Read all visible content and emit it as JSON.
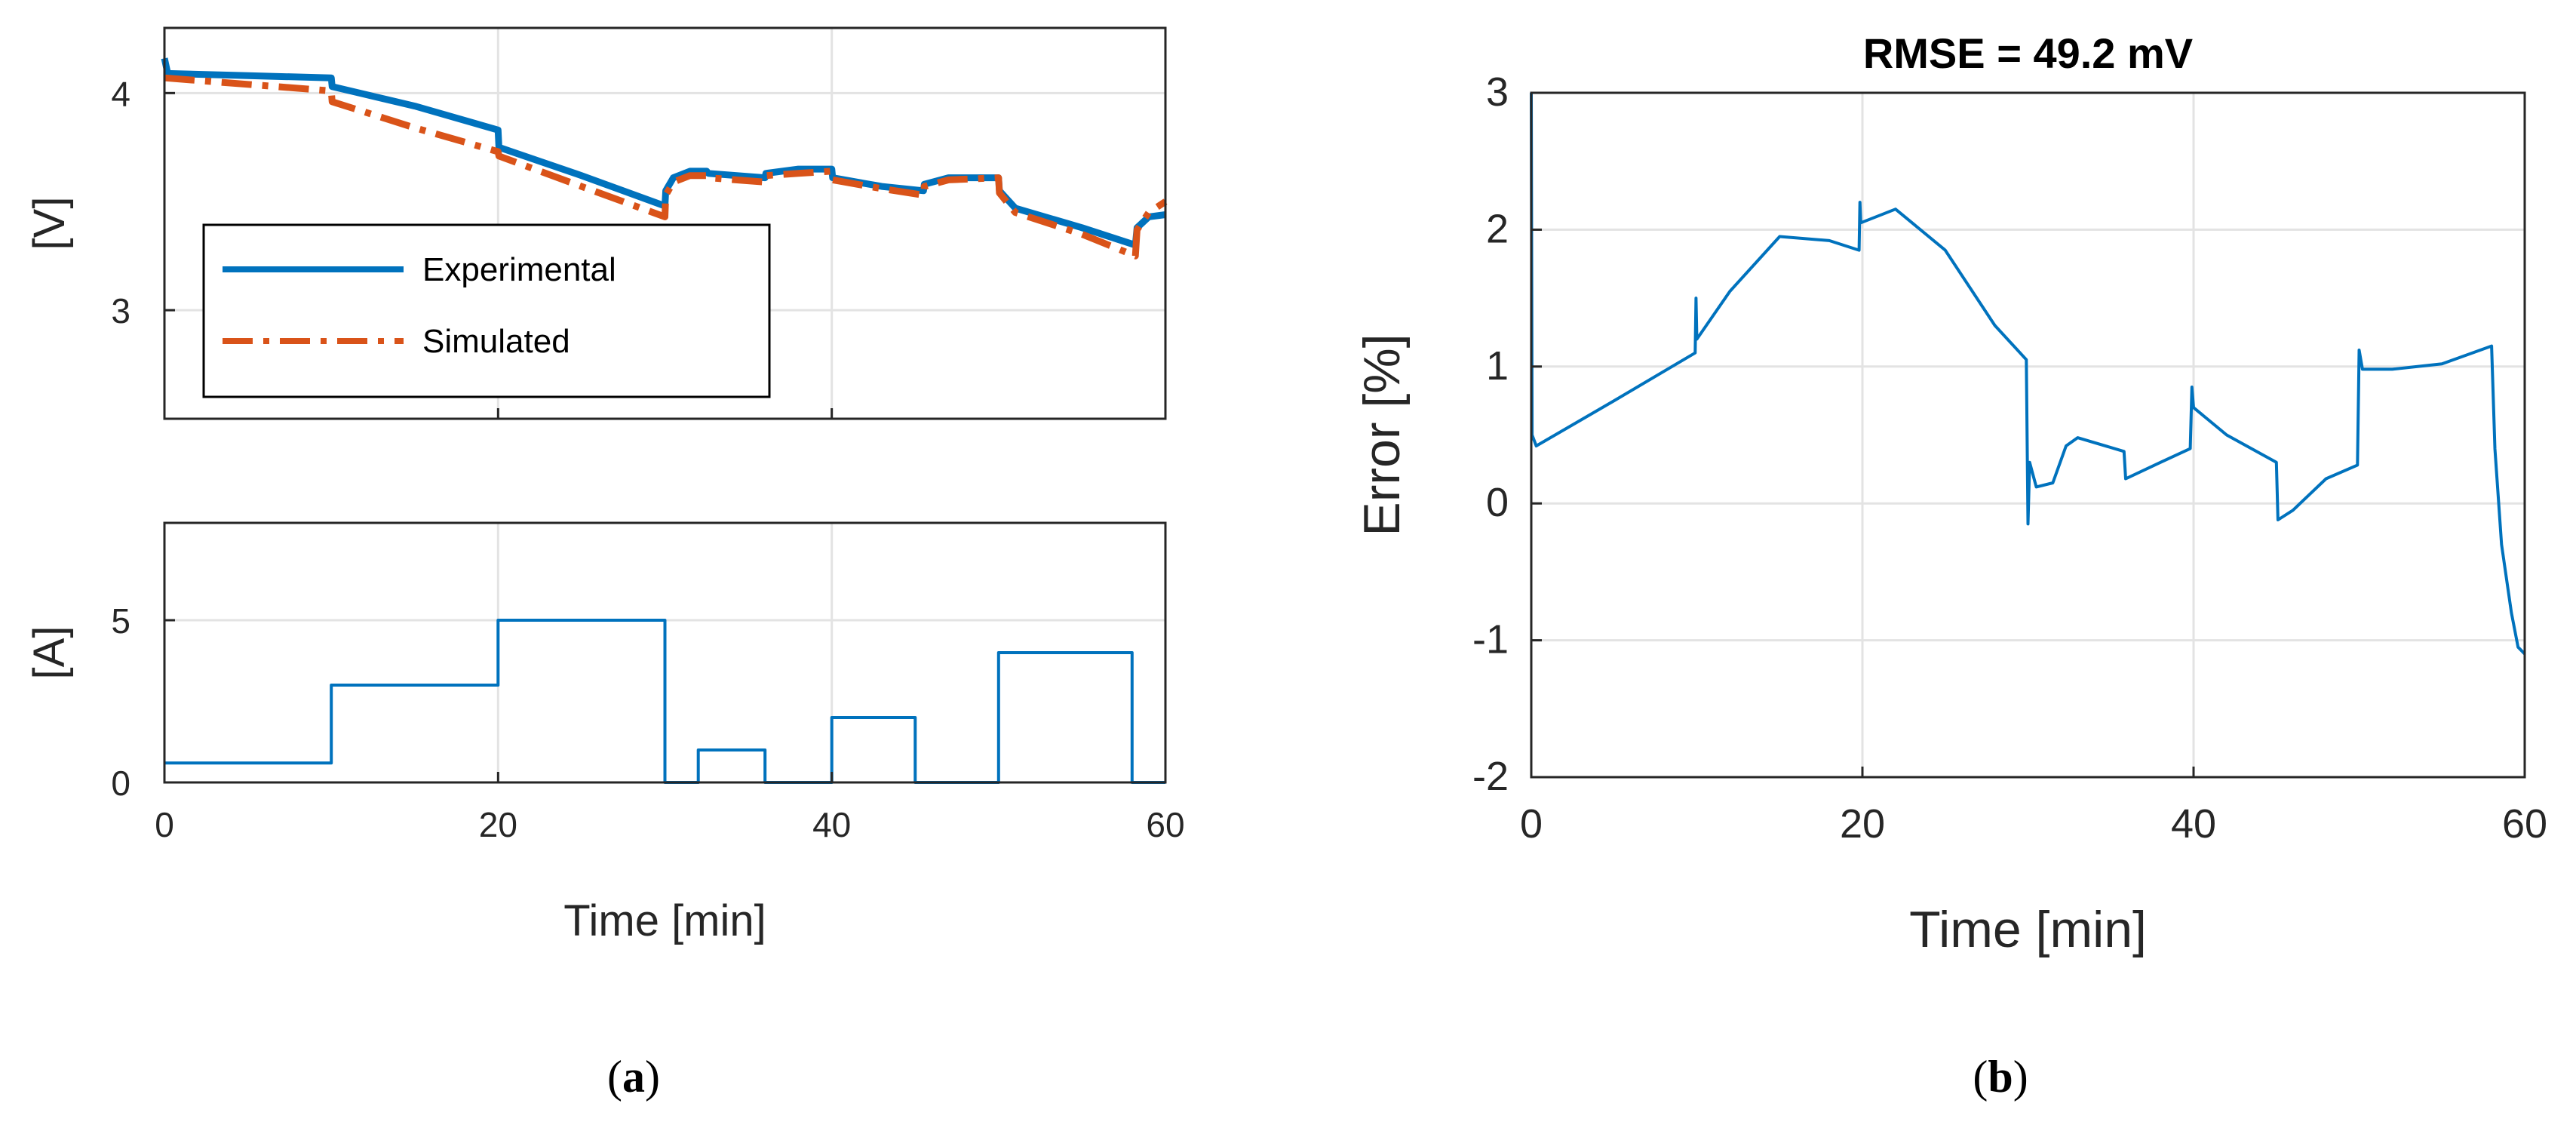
{
  "colors": {
    "experimental": "#0072BD",
    "simulated": "#D95319",
    "axis": "#262626",
    "grid": "#e3e3e3"
  },
  "panel_a": {
    "caption_open": "(",
    "caption_letter": "a",
    "caption_close": ")"
  },
  "panel_b": {
    "caption_open": "(",
    "caption_letter": "b",
    "caption_close": ")"
  },
  "chart_data": [
    {
      "id": "voltage",
      "type": "line",
      "title": "",
      "xlabel": "",
      "ylabel": "[V]",
      "xlim": [
        0,
        60
      ],
      "ylim": [
        2.5,
        4.3
      ],
      "xticks": [
        0,
        20,
        40,
        60
      ],
      "yticks": [
        3,
        4
      ],
      "ytick_labels": [
        "3",
        "4"
      ],
      "grid": true,
      "legend": {
        "location": "lower-left",
        "entries": [
          "Experimental",
          "Simulated"
        ]
      },
      "series": [
        {
          "name": "Experimental",
          "style": "solid",
          "points": [
            [
              0,
              4.16
            ],
            [
              0.2,
              4.09
            ],
            [
              5,
              4.08
            ],
            [
              10,
              4.07
            ],
            [
              10.05,
              4.03
            ],
            [
              15,
              3.94
            ],
            [
              20,
              3.83
            ],
            [
              20.05,
              3.75
            ],
            [
              25,
              3.62
            ],
            [
              30,
              3.48
            ],
            [
              30.05,
              3.55
            ],
            [
              30.5,
              3.61
            ],
            [
              31.5,
              3.64
            ],
            [
              32.5,
              3.64
            ],
            [
              32.6,
              3.63
            ],
            [
              36,
              3.61
            ],
            [
              36.05,
              3.63
            ],
            [
              38,
              3.65
            ],
            [
              40,
              3.65
            ],
            [
              40.05,
              3.61
            ],
            [
              43,
              3.57
            ],
            [
              45.5,
              3.55
            ],
            [
              45.55,
              3.58
            ],
            [
              47,
              3.61
            ],
            [
              50,
              3.61
            ],
            [
              50.05,
              3.55
            ],
            [
              51,
              3.47
            ],
            [
              55,
              3.38
            ],
            [
              58.2,
              3.3
            ],
            [
              58.3,
              3.38
            ],
            [
              59,
              3.43
            ],
            [
              60,
              3.44
            ]
          ]
        },
        {
          "name": "Simulated",
          "style": "dashdot",
          "points": [
            [
              0,
              4.07
            ],
            [
              5,
              4.04
            ],
            [
              10,
              4.01
            ],
            [
              10.05,
              3.96
            ],
            [
              15,
              3.84
            ],
            [
              20,
              3.73
            ],
            [
              20.05,
              3.71
            ],
            [
              25,
              3.57
            ],
            [
              30,
              3.43
            ],
            [
              30.05,
              3.53
            ],
            [
              30.5,
              3.59
            ],
            [
              31.5,
              3.62
            ],
            [
              32.5,
              3.62
            ],
            [
              32.6,
              3.61
            ],
            [
              36,
              3.59
            ],
            [
              36.05,
              3.62
            ],
            [
              38,
              3.63
            ],
            [
              40,
              3.64
            ],
            [
              40.05,
              3.6
            ],
            [
              43,
              3.56
            ],
            [
              45.5,
              3.53
            ],
            [
              45.55,
              3.57
            ],
            [
              47,
              3.6
            ],
            [
              50,
              3.61
            ],
            [
              50.05,
              3.54
            ],
            [
              51,
              3.45
            ],
            [
              55,
              3.35
            ],
            [
              58.2,
              3.25
            ],
            [
              58.3,
              3.37
            ],
            [
              59,
              3.45
            ],
            [
              60,
              3.5
            ]
          ]
        }
      ]
    },
    {
      "id": "current",
      "type": "line",
      "title": "",
      "xlabel": "Time [min]",
      "ylabel": "[A]",
      "xlim": [
        0,
        60
      ],
      "ylim": [
        0,
        8
      ],
      "xticks": [
        0,
        20,
        40,
        60
      ],
      "xtick_labels": [
        "0",
        "20",
        "40",
        "60"
      ],
      "yticks": [
        0,
        5
      ],
      "ytick_labels": [
        "0",
        "5"
      ],
      "grid": true,
      "series": [
        {
          "name": "",
          "style": "solid",
          "points": [
            [
              0,
              0.6
            ],
            [
              10,
              0.6
            ],
            [
              10,
              3
            ],
            [
              20,
              3
            ],
            [
              20,
              5
            ],
            [
              30,
              5
            ],
            [
              30,
              0
            ],
            [
              32,
              0
            ],
            [
              32,
              1
            ],
            [
              36,
              1
            ],
            [
              36,
              0
            ],
            [
              40,
              0
            ],
            [
              40,
              2
            ],
            [
              45,
              2
            ],
            [
              45,
              0
            ],
            [
              50,
              0
            ],
            [
              50,
              4
            ],
            [
              58,
              4
            ],
            [
              58,
              0
            ],
            [
              60,
              0
            ]
          ]
        }
      ]
    },
    {
      "id": "error",
      "type": "line",
      "title": "RMSE = 49.2 mV",
      "xlabel": "Time [min]",
      "ylabel": "Error [%]",
      "xlim": [
        0,
        60
      ],
      "ylim": [
        -2,
        3
      ],
      "xticks": [
        0,
        20,
        40,
        60
      ],
      "xtick_labels": [
        "0",
        "20",
        "40",
        "60"
      ],
      "yticks": [
        -2,
        -1,
        0,
        1,
        2,
        3
      ],
      "ytick_labels": [
        "-2",
        "-1",
        "0",
        "1",
        "2",
        "3"
      ],
      "grid": true,
      "series": [
        {
          "name": "",
          "style": "solid",
          "points": [
            [
              0,
              3
            ],
            [
              0.05,
              0.5
            ],
            [
              0.3,
              0.42
            ],
            [
              5,
              0.75
            ],
            [
              9.9,
              1.1
            ],
            [
              9.95,
              1.5
            ],
            [
              10,
              1.2
            ],
            [
              12,
              1.55
            ],
            [
              15,
              1.95
            ],
            [
              18,
              1.92
            ],
            [
              19.8,
              1.85
            ],
            [
              19.85,
              2.2
            ],
            [
              19.9,
              2.05
            ],
            [
              22,
              2.15
            ],
            [
              25,
              1.85
            ],
            [
              28,
              1.3
            ],
            [
              29.9,
              1.05
            ],
            [
              30,
              -0.15
            ],
            [
              30.1,
              0.3
            ],
            [
              30.5,
              0.12
            ],
            [
              31.5,
              0.15
            ],
            [
              32.3,
              0.42
            ],
            [
              33,
              0.48
            ],
            [
              35.8,
              0.38
            ],
            [
              35.9,
              0.18
            ],
            [
              38,
              0.3
            ],
            [
              39.8,
              0.4
            ],
            [
              39.9,
              0.85
            ],
            [
              40,
              0.7
            ],
            [
              42,
              0.5
            ],
            [
              45,
              0.3
            ],
            [
              45.1,
              -0.12
            ],
            [
              46,
              -0.05
            ],
            [
              48,
              0.18
            ],
            [
              49.9,
              0.28
            ],
            [
              50,
              1.12
            ],
            [
              50.2,
              0.98
            ],
            [
              52,
              0.98
            ],
            [
              55,
              1.02
            ],
            [
              58,
              1.15
            ],
            [
              58.2,
              0.4
            ],
            [
              58.6,
              -0.3
            ],
            [
              59.2,
              -0.8
            ],
            [
              59.6,
              -1.05
            ],
            [
              60,
              -1.1
            ]
          ]
        }
      ]
    }
  ]
}
